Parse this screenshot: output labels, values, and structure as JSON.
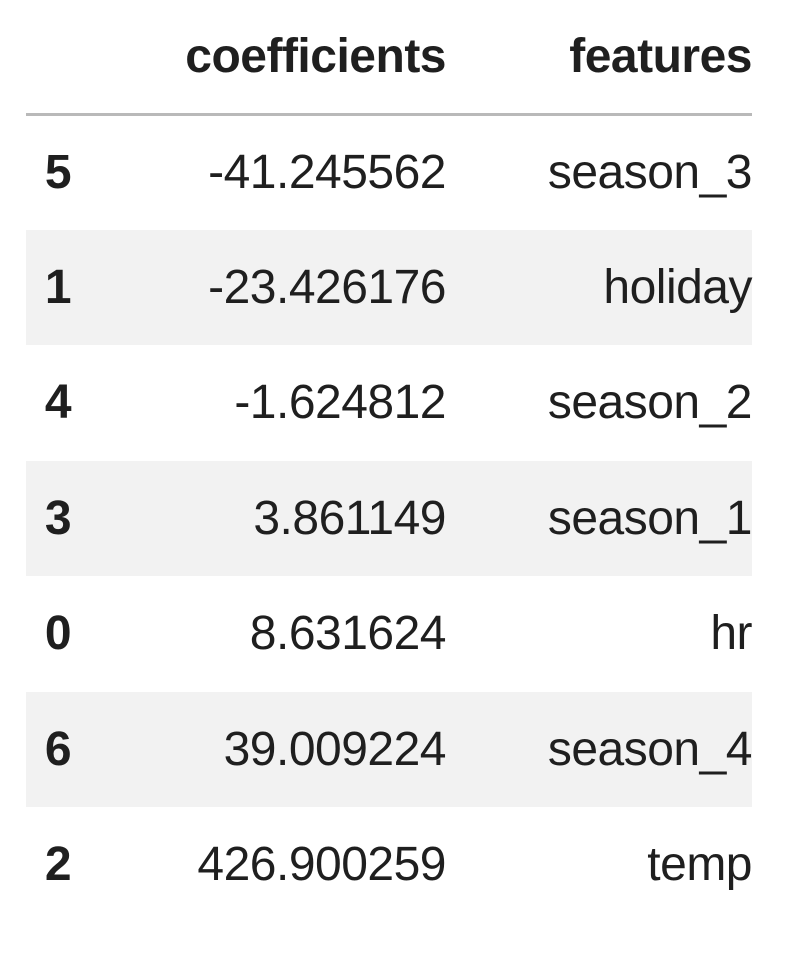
{
  "table": {
    "index_header": "",
    "columns": [
      "coefficients",
      "features"
    ],
    "rows": [
      {
        "index": "5",
        "coefficients": "-41.245562",
        "features": "season_3"
      },
      {
        "index": "1",
        "coefficients": "-23.426176",
        "features": "holiday"
      },
      {
        "index": "4",
        "coefficients": "-1.624812",
        "features": "season_2"
      },
      {
        "index": "3",
        "coefficients": "3.861149",
        "features": "season_1"
      },
      {
        "index": "0",
        "coefficients": "8.631624",
        "features": "hr"
      },
      {
        "index": "6",
        "coefficients": "39.009224",
        "features": "season_4"
      },
      {
        "index": "2",
        "coefficients": "426.900259",
        "features": "temp"
      }
    ]
  },
  "colors": {
    "striped_row": "#f2f2f2",
    "header_rule": "#b9b9b9",
    "text": "#1f1f1f"
  }
}
